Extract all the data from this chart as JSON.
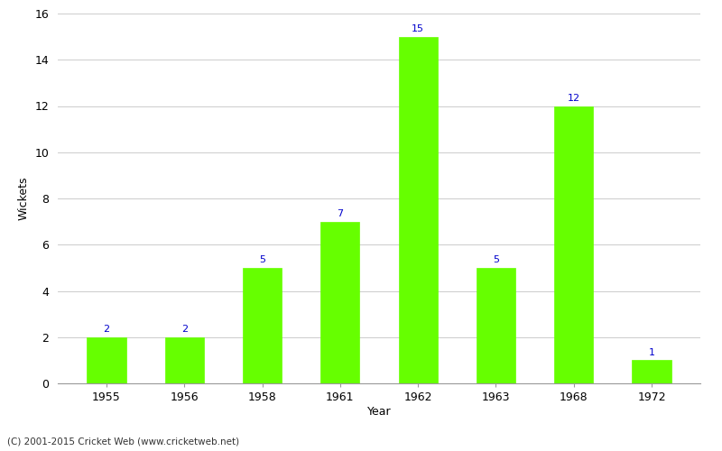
{
  "years": [
    "1955",
    "1956",
    "1958",
    "1961",
    "1962",
    "1963",
    "1968",
    "1972"
  ],
  "wickets": [
    2,
    2,
    5,
    7,
    15,
    5,
    12,
    1
  ],
  "bar_color": "#66ff00",
  "label_color": "#0000cc",
  "xlabel": "Year",
  "ylabel": "Wickets",
  "ylim": [
    0,
    16
  ],
  "yticks": [
    0,
    2,
    4,
    6,
    8,
    10,
    12,
    14,
    16
  ],
  "background_color": "#ffffff",
  "footer_text": "(C) 2001-2015 Cricket Web (www.cricketweb.net)",
  "label_fontsize": 8,
  "axis_fontsize": 9,
  "bar_width": 0.5
}
